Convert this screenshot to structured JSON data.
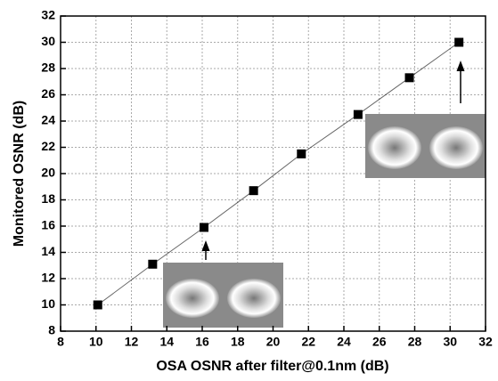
{
  "chart_data": {
    "type": "line",
    "x_label": "OSA OSNR after filter@0.1nm (dB)",
    "y_label": "Monitored OSNR (dB)",
    "x": [
      10.1,
      13.2,
      16.1,
      18.9,
      21.6,
      24.8,
      27.7,
      30.5
    ],
    "series": [
      {
        "color": "#000000",
        "values": [
          10.0,
          13.1,
          15.9,
          18.7,
          21.5,
          24.5,
          27.3,
          30.0
        ]
      }
    ],
    "xlim": [
      8,
      32
    ],
    "xticks": [
      8,
      10,
      12,
      14,
      16,
      18,
      20,
      22,
      24,
      26,
      28,
      30,
      32
    ],
    "ylim": [
      8,
      32
    ],
    "yticks": [
      8,
      10,
      12,
      14,
      16,
      18,
      20,
      22,
      24,
      26,
      28,
      30,
      32
    ],
    "grid": true
  }
}
